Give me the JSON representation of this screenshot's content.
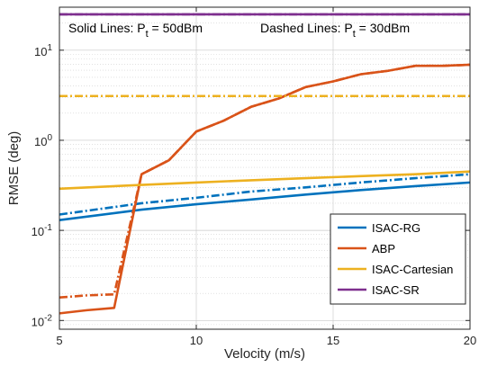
{
  "chart_data": {
    "type": "line",
    "xlabel": "Velocity (m/s)",
    "ylabel": "RMSE (deg)",
    "xlim": [
      5,
      20
    ],
    "ylim": [
      0.008,
      30
    ],
    "yscale": "log",
    "grid": true,
    "xticks": [
      5,
      10,
      15,
      20
    ],
    "xtick_labels": [
      "5",
      "10",
      "15",
      "20"
    ],
    "yticks": [
      0.01,
      0.1,
      1,
      10
    ],
    "ytick_labels": [
      {
        "base": "10",
        "exp": "-2"
      },
      {
        "base": "10",
        "exp": "-1"
      },
      {
        "base": "10",
        "exp": "0"
      },
      {
        "base": "10",
        "exp": "1"
      }
    ],
    "annotation": {
      "solid": {
        "text": "Solid Lines: P",
        "sub": "t",
        "rest": " = 50dBm"
      },
      "dashed": {
        "text": "Dashed Lines: P",
        "sub": "t",
        "rest": " = 30dBm"
      }
    },
    "legend_position": "bottom-right",
    "legend": [
      {
        "name": "ISAC-RG",
        "color": "#0072BD"
      },
      {
        "name": "ABP",
        "color": "#D95319"
      },
      {
        "name": "ISAC-Cartesian",
        "color": "#EDB120"
      },
      {
        "name": "ISAC-SR",
        "color": "#7E2F8E"
      }
    ],
    "series": [
      {
        "name": "ISAC-RG",
        "style": "solid",
        "color": "#0072BD",
        "x": [
          5,
          8,
          10,
          12,
          14,
          16,
          18,
          20
        ],
        "y": [
          0.13,
          0.17,
          0.195,
          0.22,
          0.25,
          0.28,
          0.31,
          0.34
        ]
      },
      {
        "name": "ISAC-RG",
        "style": "dashed",
        "color": "#0072BD",
        "x": [
          5,
          8,
          10,
          12,
          14,
          16,
          18,
          20
        ],
        "y": [
          0.15,
          0.2,
          0.23,
          0.27,
          0.3,
          0.34,
          0.38,
          0.42
        ]
      },
      {
        "name": "ABP",
        "style": "solid",
        "color": "#D95319",
        "x": [
          5,
          6,
          7,
          8,
          9,
          10,
          11,
          12,
          13,
          14,
          15,
          16,
          17,
          18,
          19,
          20
        ],
        "y": [
          0.012,
          0.013,
          0.0138,
          0.42,
          0.6,
          1.25,
          1.65,
          2.35,
          2.9,
          3.9,
          4.5,
          5.4,
          5.9,
          6.7,
          6.7,
          6.9
        ]
      },
      {
        "name": "ABP",
        "style": "dashed",
        "color": "#D95319",
        "x": [
          5,
          6,
          7,
          8,
          9,
          10,
          11,
          12,
          13,
          14,
          15,
          16,
          17,
          18,
          19,
          20
        ],
        "y": [
          0.018,
          0.019,
          0.0195,
          0.42,
          0.6,
          1.25,
          1.65,
          2.35,
          2.9,
          3.9,
          4.5,
          5.4,
          5.9,
          6.7,
          6.7,
          6.9
        ]
      },
      {
        "name": "ISAC-Cartesian",
        "style": "solid",
        "color": "#EDB120",
        "x": [
          5,
          8,
          10,
          12,
          14,
          16,
          18,
          20
        ],
        "y": [
          0.29,
          0.32,
          0.34,
          0.36,
          0.38,
          0.4,
          0.42,
          0.45
        ]
      },
      {
        "name": "ISAC-Cartesian",
        "style": "dashed",
        "color": "#EDB120",
        "x": [
          5,
          8,
          10,
          12,
          14,
          16,
          18,
          20
        ],
        "y": [
          3.1,
          3.1,
          3.1,
          3.1,
          3.1,
          3.1,
          3.1,
          3.1
        ]
      },
      {
        "name": "ISAC-SR",
        "style": "solid",
        "color": "#7E2F8E",
        "x": [
          5,
          20
        ],
        "y": [
          25,
          25
        ]
      },
      {
        "name": "ISAC-SR",
        "style": "dashed",
        "color": "#7E2F8E",
        "x": [
          5,
          20
        ],
        "y": [
          25,
          25
        ]
      }
    ]
  }
}
